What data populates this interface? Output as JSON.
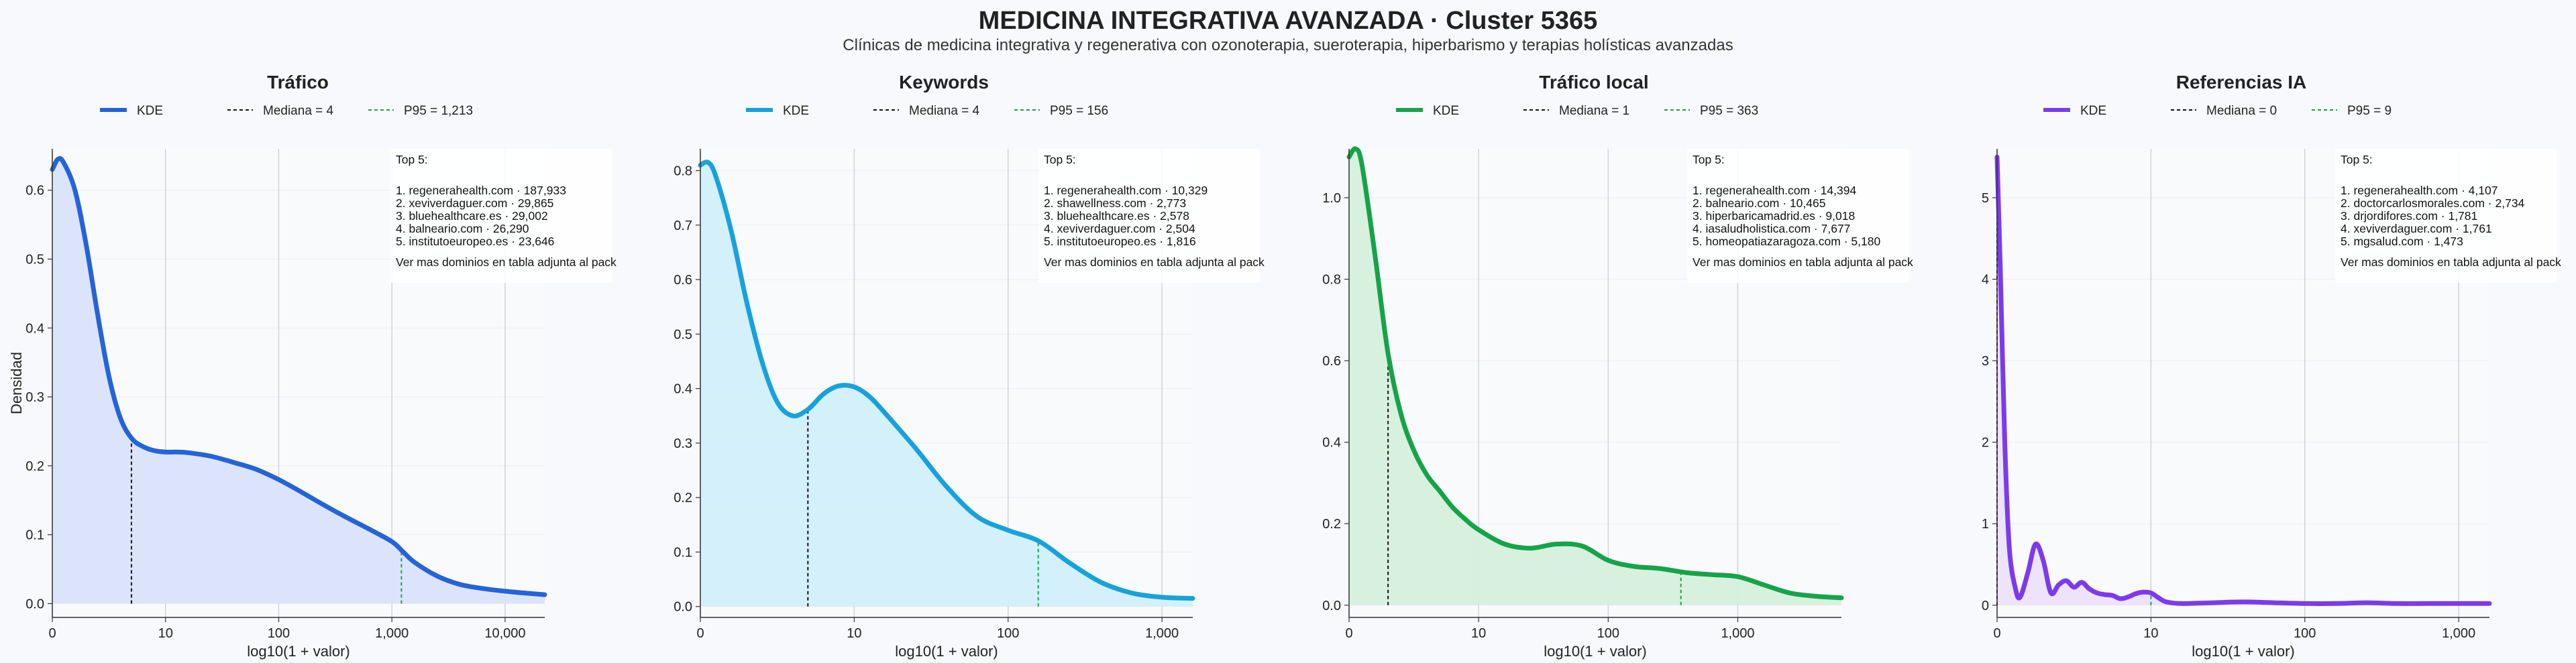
{
  "header": {
    "title": "MEDICINA INTEGRATIVA AVANZADA · Cluster 5365",
    "subtitle": "Clínicas de medicina integrativa y regenerativa con ozonoterapia, sueroterapia, hiperbarismo y terapias holísticas avanzadas"
  },
  "shared": {
    "xlabel": "log10(1 + valor)",
    "ylabel": "Densidad",
    "legend_kde": "KDE",
    "top5_heading": "Top 5:",
    "more_note": "Ver mas dominios en tabla adjunta al pack"
  },
  "chart_data": [
    {
      "type": "area",
      "title": "Tráfico",
      "color": "#2563d9",
      "fill": "#d9e3fb",
      "median_color": "#111111",
      "p95_color": "#16a34a",
      "legend": [
        "KDE",
        "Mediana = 4",
        "P95 = 1,213"
      ],
      "median_log": 0.699,
      "p95_log": 3.084,
      "xlim": [
        0,
        4.35
      ],
      "ylim": [
        -0.02,
        0.66
      ],
      "xticks": [
        0,
        1,
        2,
        3,
        4
      ],
      "xtick_labels": [
        "0",
        "10",
        "100",
        "1,000",
        "10,000"
      ],
      "yticks": [
        0,
        0.1,
        0.2,
        0.3,
        0.4,
        0.5,
        0.6
      ],
      "ytick_labels": [
        "0.0",
        "0.1",
        "0.2",
        "0.3",
        "0.4",
        "0.5",
        "0.6"
      ],
      "x": [
        0,
        0.05,
        0.1,
        0.2,
        0.3,
        0.4,
        0.5,
        0.6,
        0.7,
        0.8,
        0.9,
        1.0,
        1.1,
        1.2,
        1.4,
        1.6,
        1.8,
        2.0,
        2.2,
        2.4,
        2.6,
        2.8,
        3.0,
        3.1,
        3.2,
        3.4,
        3.6,
        3.8,
        4.0,
        4.2,
        4.35
      ],
      "y": [
        0.63,
        0.645,
        0.64,
        0.6,
        0.52,
        0.42,
        0.33,
        0.27,
        0.24,
        0.228,
        0.222,
        0.22,
        0.22,
        0.219,
        0.214,
        0.205,
        0.195,
        0.18,
        0.162,
        0.143,
        0.125,
        0.108,
        0.09,
        0.075,
        0.06,
        0.04,
        0.028,
        0.022,
        0.018,
        0.015,
        0.013
      ],
      "top5": [
        "1. regenerahealth.com · 187,933",
        "2. xeviverdaguer.com · 29,865",
        "3. bluehealthcare.es · 29,002",
        "4. balneario.com · 26,290",
        "5. institutoeuropeo.es · 23,646"
      ]
    },
    {
      "type": "area",
      "title": "Keywords",
      "color": "#17a2dc",
      "fill": "#d1effb",
      "median_color": "#111111",
      "p95_color": "#16a34a",
      "legend": [
        "KDE",
        "Mediana = 4",
        "P95 = 156"
      ],
      "median_log": 0.699,
      "p95_log": 2.196,
      "xlim": [
        0,
        3.2
      ],
      "ylim": [
        -0.02,
        0.84
      ],
      "xticks": [
        0,
        1,
        2,
        3
      ],
      "xtick_labels": [
        "0",
        "10",
        "100",
        "1,000"
      ],
      "yticks": [
        0,
        0.1,
        0.2,
        0.3,
        0.4,
        0.5,
        0.6,
        0.7,
        0.8
      ],
      "ytick_labels": [
        "0.0",
        "0.1",
        "0.2",
        "0.3",
        "0.4",
        "0.5",
        "0.6",
        "0.7",
        "0.8"
      ],
      "x": [
        0,
        0.05,
        0.1,
        0.2,
        0.3,
        0.4,
        0.5,
        0.6,
        0.7,
        0.8,
        0.9,
        1.0,
        1.1,
        1.2,
        1.4,
        1.6,
        1.8,
        2.0,
        2.2,
        2.4,
        2.6,
        2.8,
        3.0,
        3.2
      ],
      "y": [
        0.81,
        0.815,
        0.79,
        0.69,
        0.56,
        0.45,
        0.375,
        0.35,
        0.362,
        0.39,
        0.405,
        0.403,
        0.385,
        0.355,
        0.29,
        0.22,
        0.165,
        0.14,
        0.12,
        0.08,
        0.045,
        0.025,
        0.017,
        0.015
      ],
      "top5": [
        "1. regenerahealth.com · 10,329",
        "2. shawellness.com · 2,773",
        "3. bluehealthcare.es · 2,578",
        "4. xeviverdaguer.com · 2,504",
        "5. institutoeuropeo.es · 1,816"
      ]
    },
    {
      "type": "area",
      "title": "Tráfico local",
      "color": "#16a34a",
      "fill": "#d5f0dc",
      "median_color": "#111111",
      "p95_color": "#16a34a",
      "legend": [
        "KDE",
        "Mediana = 1",
        "P95 = 363"
      ],
      "median_log": 0.301,
      "p95_log": 2.561,
      "xlim": [
        0,
        3.8
      ],
      "ylim": [
        -0.03,
        1.12
      ],
      "xticks": [
        0,
        1,
        2,
        3
      ],
      "xtick_labels": [
        "0",
        "10",
        "100",
        "1,000"
      ],
      "yticks": [
        0,
        0.2,
        0.4,
        0.6,
        0.8,
        1.0
      ],
      "ytick_labels": [
        "0.0",
        "0.2",
        "0.4",
        "0.6",
        "0.8",
        "1.0"
      ],
      "x": [
        0,
        0.05,
        0.1,
        0.2,
        0.3,
        0.4,
        0.5,
        0.6,
        0.7,
        0.8,
        0.9,
        1.0,
        1.2,
        1.4,
        1.6,
        1.8,
        2.0,
        2.2,
        2.4,
        2.6,
        2.8,
        3.0,
        3.2,
        3.4,
        3.6,
        3.8
      ],
      "y": [
        1.1,
        1.12,
        1.08,
        0.86,
        0.62,
        0.47,
        0.38,
        0.32,
        0.28,
        0.24,
        0.21,
        0.185,
        0.15,
        0.14,
        0.15,
        0.145,
        0.11,
        0.095,
        0.09,
        0.08,
        0.075,
        0.07,
        0.05,
        0.03,
        0.022,
        0.018
      ],
      "top5": [
        "1. regenerahealth.com · 14,394",
        "2. balneario.com · 10,465",
        "3. hiperbaricamadrid.es · 9,018",
        "4. iasaludholistica.com · 7,677",
        "5. homeopatiazaragoza.com · 5,180"
      ]
    },
    {
      "type": "area",
      "title": "Referencias IA",
      "color": "#7c3aed",
      "fill": "#ece1fb",
      "median_color": "#111111",
      "p95_color": "#16a34a",
      "legend": [
        "KDE",
        "Mediana = 0",
        "P95 = 9"
      ],
      "median_log": 0.0,
      "p95_log": 1.0,
      "xlim": [
        0,
        3.2
      ],
      "ylim": [
        -0.15,
        5.6
      ],
      "xticks": [
        0,
        1,
        2,
        3
      ],
      "xtick_labels": [
        "0",
        "10",
        "100",
        "1,000"
      ],
      "yticks": [
        0,
        1,
        2,
        3,
        4,
        5
      ],
      "ytick_labels": [
        "0",
        "1",
        "2",
        "3",
        "4",
        "5"
      ],
      "x": [
        0,
        0.02,
        0.05,
        0.08,
        0.12,
        0.15,
        0.2,
        0.25,
        0.3,
        0.35,
        0.4,
        0.45,
        0.5,
        0.55,
        0.6,
        0.65,
        0.7,
        0.75,
        0.8,
        0.85,
        0.9,
        0.95,
        1.0,
        1.05,
        1.1,
        1.2,
        1.4,
        1.6,
        1.8,
        2.0,
        2.2,
        2.4,
        2.6,
        2.8,
        3.0,
        3.2
      ],
      "y": [
        5.5,
        4.2,
        2.0,
        0.7,
        0.2,
        0.1,
        0.4,
        0.75,
        0.55,
        0.15,
        0.25,
        0.3,
        0.22,
        0.28,
        0.2,
        0.15,
        0.13,
        0.12,
        0.08,
        0.1,
        0.14,
        0.16,
        0.15,
        0.09,
        0.04,
        0.02,
        0.03,
        0.04,
        0.03,
        0.02,
        0.02,
        0.03,
        0.02,
        0.02,
        0.02,
        0.02
      ],
      "top5": [
        "1. regenerahealth.com · 4,107",
        "2. doctorcarlosmorales.com · 2,734",
        "3. drjordifores.com · 1,781",
        "4. xeviverdaguer.com · 1,761",
        "5. mgsalud.com · 1,473"
      ]
    }
  ]
}
